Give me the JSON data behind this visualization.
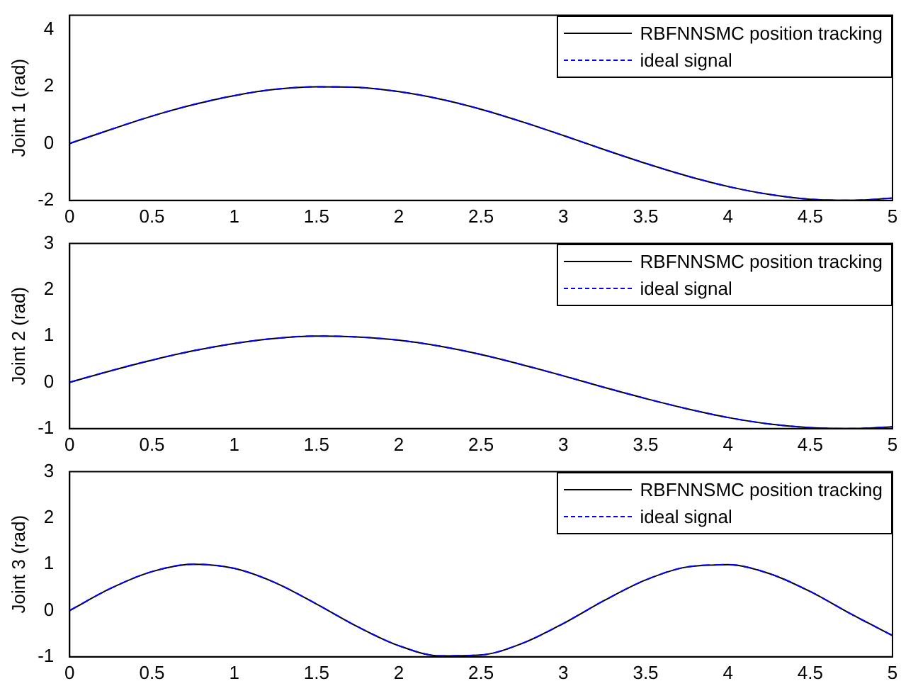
{
  "chart_data": [
    {
      "type": "line",
      "ylabel": "Joint 1 (rad)",
      "x": [
        0,
        0.25,
        0.5,
        0.75,
        1,
        1.25,
        1.5,
        1.75,
        2,
        2.25,
        2.5,
        2.75,
        3,
        3.25,
        3.5,
        3.75,
        4,
        4.25,
        4.5,
        4.75,
        5
      ],
      "xlim": [
        0,
        5
      ],
      "xticks": [
        0,
        0.5,
        1,
        1.5,
        2,
        2.5,
        3,
        3.5,
        4,
        4.5,
        5
      ],
      "ylim": [
        -2,
        4.5
      ],
      "yticks": [
        -2,
        0,
        2,
        4
      ],
      "legend": "top right",
      "series": [
        {
          "name": "RBFNNSMC position tracking",
          "color": "#000000",
          "line_style": "solid",
          "values": [
            0,
            0.49,
            0.96,
            1.36,
            1.68,
            1.9,
            1.99,
            1.97,
            1.82,
            1.56,
            1.2,
            0.76,
            0.28,
            -0.22,
            -0.7,
            -1.14,
            -1.51,
            -1.79,
            -1.96,
            -2,
            -1.92
          ]
        },
        {
          "name": "ideal signal",
          "color": "#0000ff",
          "line_style": "dashed",
          "values": [
            0,
            0.49,
            0.96,
            1.36,
            1.68,
            1.9,
            1.99,
            1.97,
            1.82,
            1.56,
            1.2,
            0.76,
            0.28,
            -0.22,
            -0.7,
            -1.14,
            -1.51,
            -1.79,
            -1.96,
            -2,
            -1.92
          ]
        }
      ]
    },
    {
      "type": "line",
      "ylabel": "Joint 2 (rad)",
      "x": [
        0,
        0.25,
        0.5,
        0.75,
        1,
        1.25,
        1.5,
        1.75,
        2,
        2.25,
        2.5,
        2.75,
        3,
        3.25,
        3.5,
        3.75,
        4,
        4.25,
        4.5,
        4.75,
        5
      ],
      "xlim": [
        0,
        5
      ],
      "xticks": [
        0,
        0.5,
        1,
        1.5,
        2,
        2.5,
        3,
        3.5,
        4,
        4.5,
        5
      ],
      "ylim": [
        -1,
        3
      ],
      "yticks": [
        -1,
        0,
        1,
        2,
        3
      ],
      "legend": "top right",
      "series": [
        {
          "name": "RBFNNSMC position tracking",
          "color": "#000000",
          "line_style": "solid",
          "values": [
            0,
            0.25,
            0.48,
            0.68,
            0.84,
            0.95,
            1,
            0.98,
            0.91,
            0.78,
            0.6,
            0.38,
            0.14,
            -0.11,
            -0.35,
            -0.57,
            -0.76,
            -0.9,
            -0.98,
            -1,
            -0.96
          ]
        },
        {
          "name": "ideal signal",
          "color": "#0000ff",
          "line_style": "dashed",
          "values": [
            0,
            0.25,
            0.48,
            0.68,
            0.84,
            0.95,
            1,
            0.98,
            0.91,
            0.78,
            0.6,
            0.38,
            0.14,
            -0.11,
            -0.35,
            -0.57,
            -0.76,
            -0.9,
            -0.98,
            -1,
            -0.96
          ]
        }
      ]
    },
    {
      "type": "line",
      "ylabel": "Joint 3 (rad)",
      "x": [
        0,
        0.25,
        0.5,
        0.75,
        1,
        1.25,
        1.5,
        1.75,
        2,
        2.25,
        2.5,
        2.75,
        3,
        3.25,
        3.5,
        3.75,
        4,
        4.25,
        4.5,
        4.75,
        5
      ],
      "xlim": [
        0,
        5
      ],
      "xticks": [
        0,
        0.5,
        1,
        1.5,
        2,
        2.5,
        3,
        3.5,
        4,
        4.5,
        5
      ],
      "ylim": [
        -1,
        3
      ],
      "yticks": [
        -1,
        0,
        1,
        2,
        3
      ],
      "legend": "top right",
      "series": [
        {
          "name": "RBFNNSMC position tracking",
          "color": "#000000",
          "line_style": "solid",
          "values": [
            0,
            0.48,
            0.84,
            1,
            0.91,
            0.6,
            0.14,
            -0.35,
            -0.76,
            -0.98,
            -0.96,
            -0.71,
            -0.28,
            0.22,
            0.66,
            0.94,
            0.99,
            0.8,
            0.41,
            -0.08,
            -0.54
          ]
        },
        {
          "name": "ideal signal",
          "color": "#0000ff",
          "line_style": "dashed",
          "values": [
            0,
            0.48,
            0.84,
            1,
            0.91,
            0.6,
            0.14,
            -0.35,
            -0.76,
            -0.98,
            -0.96,
            -0.71,
            -0.28,
            0.22,
            0.66,
            0.94,
            0.99,
            0.8,
            0.41,
            -0.08,
            -0.54
          ]
        }
      ]
    }
  ]
}
